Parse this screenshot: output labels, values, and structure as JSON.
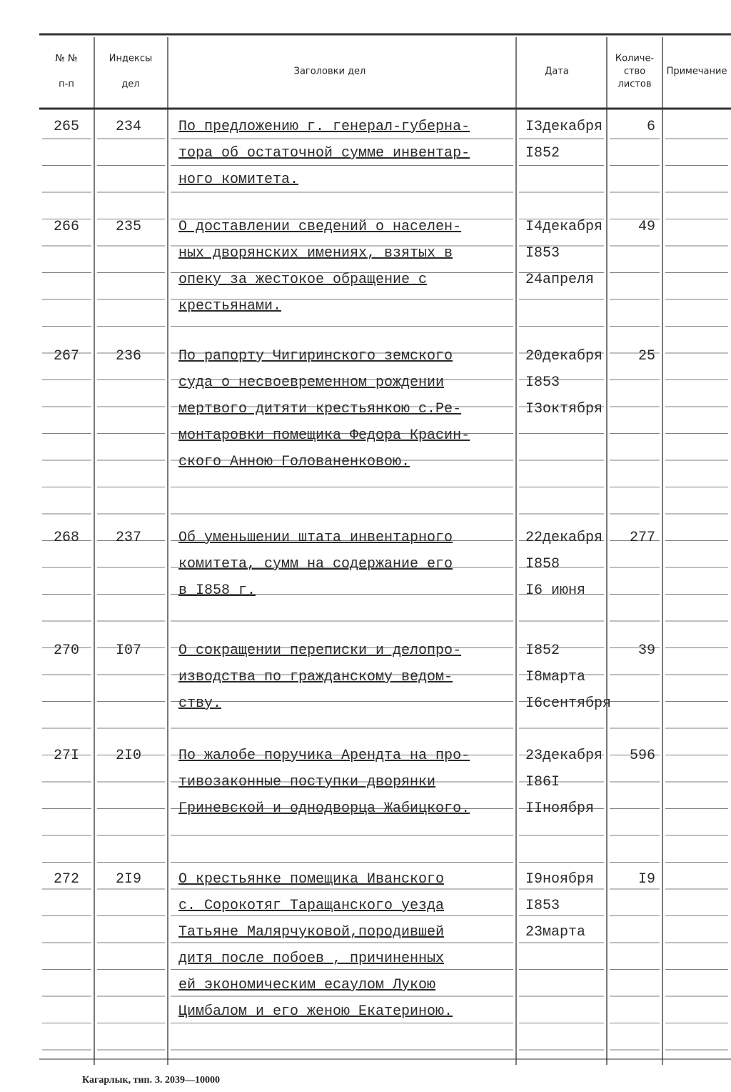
{
  "header": {
    "columns": [
      [
        "№ №",
        "п-п"
      ],
      [
        "Индексы",
        "дел"
      ],
      [
        "Заголовки дел"
      ],
      [
        "Дата"
      ],
      [
        "Количе-",
        "ство",
        "листов"
      ],
      [
        "Примечание"
      ]
    ]
  },
  "table": {
    "rows": [
      {
        "number": "265",
        "index": "234",
        "title": [
          "По предложению г. генерал-губерна-",
          "тора об остаточной сумме инвентар-",
          "ного комитета."
        ],
        "date": [
          "I3декабря",
          "I852"
        ],
        "sheets": "6"
      },
      {
        "number": "266",
        "index": "235",
        "title": [
          "О доставлении сведений о населен-",
          "ных дворянских имениях, взятых в",
          "опеку за жестокое обращение  с",
          "крестьянами."
        ],
        "date": [
          "I4декабря",
          "I853",
          "24апреля"
        ],
        "sheets": "49"
      },
      {
        "number": "267",
        "index": "236",
        "title": [
          "По рапорту Чигиринского земского",
          "суда о несвоевременном рождении",
          "мертвого дитяти крестьянкою с.Ре-",
          "монтаровки помещика Федора Красин-",
          "ского  Анною Голованенковою."
        ],
        "date": [
          "20декабря",
          "I853",
          "I3октября"
        ],
        "sheets": "25"
      },
      {
        "number": "268",
        "index": "237",
        "title": [
          "Об уменьшении штата инвентарного",
          "комитета, сумм на содержание его",
          "в I858 г."
        ],
        "date": [
          "22декабря",
          "I858",
          "I6 июня"
        ],
        "sheets": "277"
      },
      {
        "number": "270",
        "index": "I07",
        "title": [
          "О сокращении переписки и делопро-",
          "изводства по гражданскому ведом-",
          "ству."
        ],
        "date": [
          "I852",
          "I8марта",
          "I6сентября"
        ],
        "sheets": "39"
      },
      {
        "number": "27I",
        "index": "2I0",
        "title": [
          "По жалобе поручика Арендта на про-",
          "тивозаконные поступки дворянки",
          "Гриневской и однодворца Жабицкого."
        ],
        "date": [
          "23декабря",
          "I86I",
          "IIноября"
        ],
        "sheets": "596"
      },
      {
        "number": "272",
        "index": "2I9",
        "title": [
          "О крестьянке помещика Иванского",
          "с. Сорокотяг Таращанского уезда",
          "Татьяне Малярчуковой,породившей",
          "дитя после побоев , причиненных",
          "ей экономическим есаулом  Лукою",
          "Цимбалом и его женою Екатериною."
        ],
        "date": [
          "I9ноября",
          "I853",
          "23марта"
        ],
        "sheets": "I9"
      }
    ]
  },
  "footer": {
    "imprint": "Кагарлык, тип. З. 2039—10000"
  }
}
